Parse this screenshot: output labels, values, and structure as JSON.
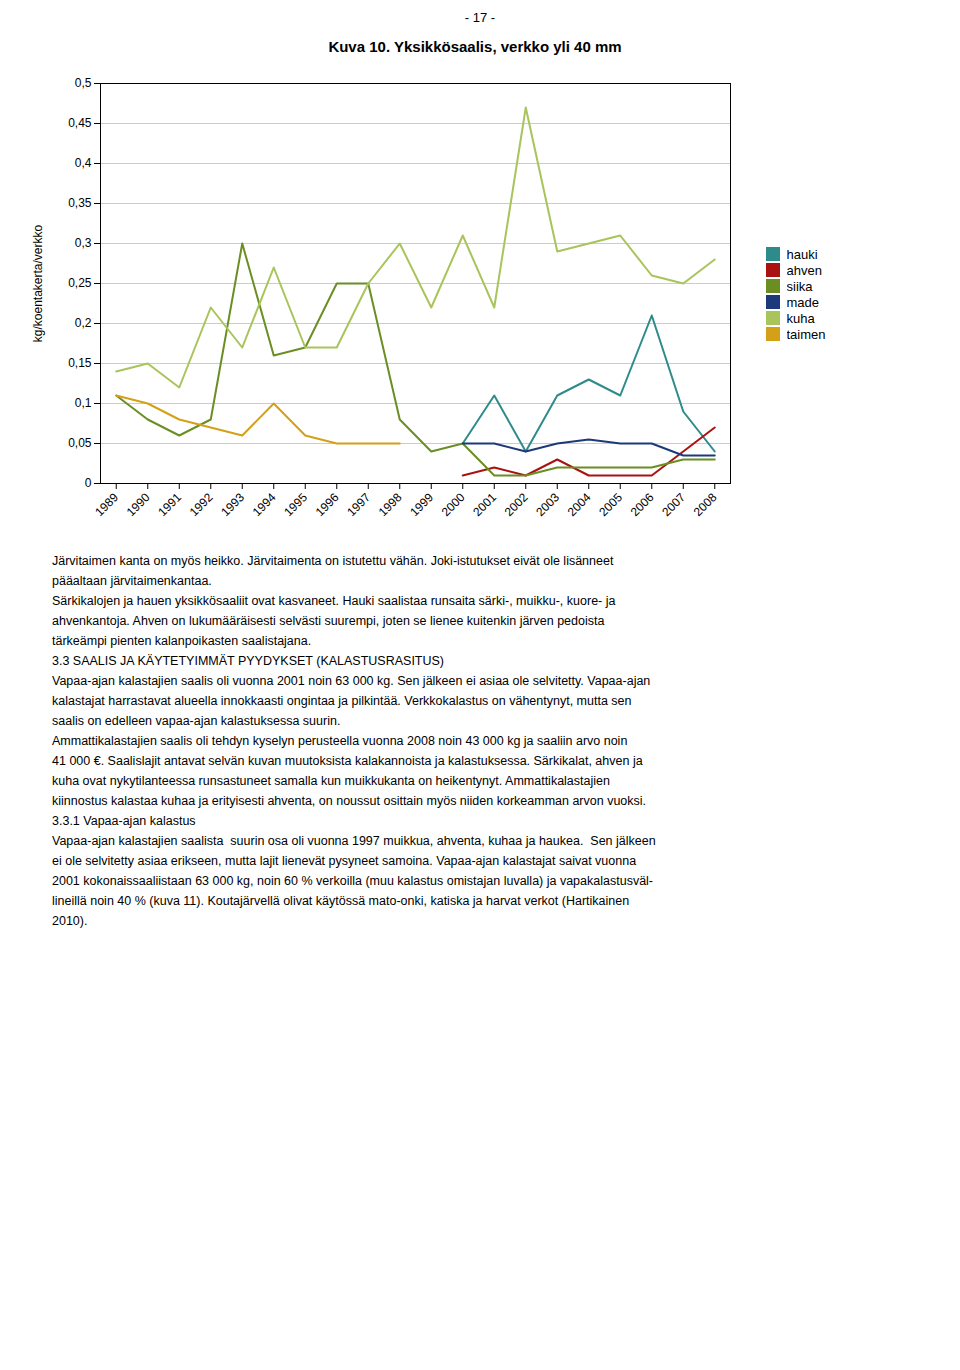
{
  "chart_data": {
    "type": "line",
    "title": "Kuva  10. Yksikkösaalis, verkko yli 40 mm",
    "ylabel": "kg/koentakerta/verkko",
    "x": [
      1989,
      1990,
      1991,
      1992,
      1993,
      1994,
      1995,
      1996,
      1997,
      1998,
      1999,
      2000,
      2001,
      2002,
      2003,
      2004,
      2005,
      2006,
      2007,
      2008
    ],
    "series": [
      {
        "name": "hauki",
        "color": "#2E8B8B",
        "values": [
          null,
          null,
          null,
          null,
          null,
          null,
          null,
          null,
          null,
          null,
          null,
          0.05,
          0.11,
          0.04,
          0.11,
          0.13,
          0.11,
          0.21,
          0.09,
          0.04
        ]
      },
      {
        "name": "ahven",
        "color": "#AA1111",
        "values": [
          null,
          null,
          null,
          null,
          null,
          null,
          null,
          null,
          null,
          null,
          null,
          0.01,
          0.02,
          0.01,
          0.03,
          0.01,
          0.01,
          0.01,
          0.04,
          0.07
        ]
      },
      {
        "name": "siika",
        "color": "#6B8E23",
        "values": [
          0.11,
          0.08,
          0.06,
          0.08,
          0.3,
          0.16,
          0.17,
          0.25,
          0.25,
          0.08,
          0.04,
          0.05,
          0.01,
          0.01,
          0.02,
          0.02,
          0.02,
          0.02,
          0.03,
          0.03
        ]
      },
      {
        "name": "made",
        "color": "#1C3A7A",
        "values": [
          null,
          null,
          null,
          null,
          null,
          null,
          null,
          null,
          null,
          null,
          null,
          0.05,
          0.05,
          0.04,
          0.05,
          0.055,
          0.05,
          0.05,
          0.035,
          0.035
        ]
      },
      {
        "name": "kuha",
        "color": "#A8C45A",
        "values": [
          0.14,
          0.15,
          0.12,
          0.22,
          0.17,
          0.27,
          0.17,
          0.17,
          0.25,
          0.3,
          0.22,
          0.31,
          0.22,
          0.47,
          0.29,
          0.3,
          0.31,
          0.26,
          0.25,
          0.28
        ]
      },
      {
        "name": "taimen",
        "color": "#D4A017",
        "values": [
          0.11,
          0.1,
          0.08,
          0.07,
          0.06,
          0.1,
          0.06,
          0.05,
          0.05,
          0.05,
          null,
          null,
          null,
          null,
          null,
          null,
          null,
          null,
          null,
          null
        ]
      }
    ],
    "xlim": [
      1988.5,
      2008.5
    ],
    "xticks": [
      1989,
      1990,
      1991,
      1992,
      1993,
      1994,
      1995,
      1996,
      1997,
      1998,
      1999,
      2000,
      2001,
      2002,
      2003,
      2004,
      2005,
      2006,
      2007,
      2008
    ],
    "ylim": [
      0,
      0.5
    ],
    "yticks": [
      0,
      {
        "value": 0.05,
        "label": "0,05"
      },
      {
        "value": 0.1,
        "label": "0,1"
      },
      {
        "value": 0.15,
        "label": "0,15"
      },
      {
        "value": 0.2,
        "label": "0,2"
      },
      {
        "value": 0.25,
        "label": "0,25"
      },
      {
        "value": 0.3,
        "label": "0,3"
      },
      {
        "value": 0.35,
        "label": "0,35"
      },
      {
        "value": 0.4,
        "label": "0,4"
      },
      {
        "value": 0.45,
        "label": "0,45"
      },
      {
        "value": 0.5,
        "label": "0,5"
      }
    ],
    "grid": "y",
    "legend": "right",
    "annotations": [
      "- 17 -",
      "Järvitaimen kanta on myös heikko. Järvitaimenta on istutettu vähän. Joki-istutukset eivät ole lisänneet",
      "pääaltaan järvitaimenkantaa.",
      "Särkikalojen ja hauen yksikkösaaliit ovat kasvaneet. Hauki saalistaa runsaita särki-, muikku-, kuore- ja",
      "ahvenkantoja. Ahven on lukumääräisesti selvästi suurempi, joten se lienee kuitenkin järven pedoista",
      "tärkeämpi pienten kalanpoikasten saalistajana.",
      "3.3 SAALIS JA KÄYTETYIMMÄT PYYDYKSET (KALASTUSRASITUS)",
      "Vapaa-ajan kalastajien saalis oli vuonna 2001 noin 63 000 kg. Sen jälkeen ei asiaa ole selvitetty. Vapaa-ajan",
      "kalastajat harrastavat alueella innokkaasti ongintaa ja pilkintää. Verkkokalastus on vähentynyt, mutta sen",
      "saalis on edelleen vapaa-ajan kalastuksessa suurin.",
      "Ammattikalastajien saalis oli tehdyn kyselyn perusteella vuonna 2008 noin 43 000 kg ja saaliin arvo noin",
      "41 000 €. Saalislajit antavat selvän kuvan muutoksista kalakannoista ja kalastuksessa. Särkikalat, ahven ja",
      "kuha ovat nykytilanteessa runsastuneet samalla kun muikkukanta on heikentynyt. Ammattikalastajien",
      "kiinnostus kalastaa kuhaa ja erityisesti ahventa, on noussut osittain myös niiden korkeamman arvon vuoksi.",
      "3.3.1 Vapaa-ajan kalastus",
      "Vapaa-ajan kalastajien saalista  suurin osa oli vuonna 1997 muikkua, ahventa, kuhaa ja haukea.  Sen jälkeen",
      "ei ole selvitetty asiaa erikseen, mutta lajit lienevät pysyneet samoina. Vapaa-ajan kalastajat saivat vuonna",
      "2001 kokonaissaaliistaan 63 000 kg, noin 60 % verkoilla (muu kalastus omistajan luvalla) ja vapakalastusväl-",
      "lineillä noin 40 % (kuva 11). Koutajärvellä olivat käytössä mato-onki, katiska ja harvat verkot (Hartikainen",
      "2010)."
    ]
  }
}
